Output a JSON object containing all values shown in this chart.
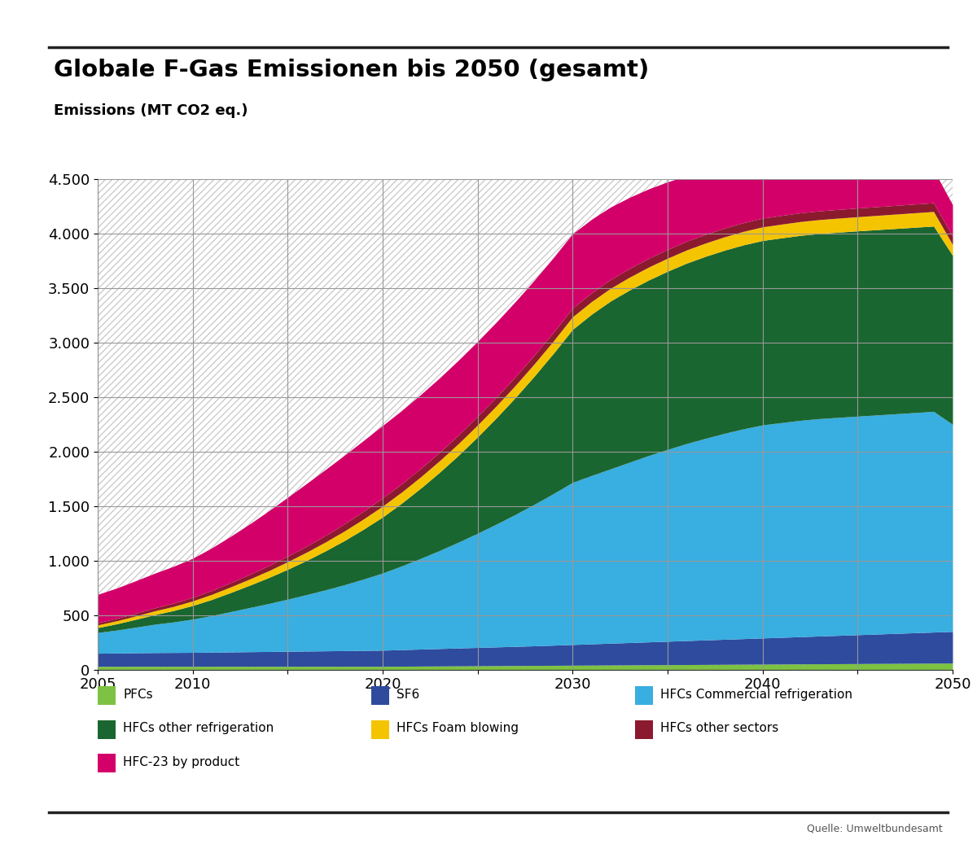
{
  "title": "Globale F-Gas Emissionen bis 2050 (gesamt)",
  "ylabel": "Emissions (MT CO2 eq.)",
  "source": "Quelle: Umweltbundesamt",
  "years": [
    2005,
    2006,
    2007,
    2008,
    2009,
    2010,
    2011,
    2012,
    2013,
    2014,
    2015,
    2016,
    2017,
    2018,
    2019,
    2020,
    2021,
    2022,
    2023,
    2024,
    2025,
    2026,
    2027,
    2028,
    2029,
    2030,
    2031,
    2032,
    2033,
    2034,
    2035,
    2036,
    2037,
    2038,
    2039,
    2040,
    2041,
    2042,
    2043,
    2044,
    2045,
    2046,
    2047,
    2048,
    2049,
    2050
  ],
  "series": {
    "PFCs": {
      "color": "#7dc242",
      "values": [
        30,
        30,
        30,
        30,
        30,
        30,
        30,
        30,
        30,
        30,
        30,
        30,
        30,
        30,
        30,
        30,
        31,
        32,
        33,
        34,
        35,
        36,
        37,
        38,
        39,
        40,
        41,
        42,
        43,
        44,
        45,
        46,
        47,
        48,
        49,
        50,
        51,
        52,
        53,
        54,
        55,
        56,
        57,
        58,
        59,
        60
      ]
    },
    "SF6": {
      "color": "#2e4b9e",
      "values": [
        120,
        122,
        124,
        126,
        127,
        128,
        130,
        132,
        134,
        136,
        138,
        140,
        142,
        144,
        146,
        148,
        152,
        156,
        160,
        164,
        168,
        172,
        176,
        180,
        185,
        190,
        195,
        200,
        205,
        210,
        215,
        220,
        225,
        230,
        235,
        240,
        245,
        250,
        255,
        260,
        265,
        270,
        275,
        280,
        285,
        290
      ]
    },
    "HFCs Commercial refrigeration": {
      "color": "#39aee0",
      "values": [
        190,
        210,
        235,
        260,
        280,
        305,
        335,
        370,
        405,
        440,
        478,
        518,
        560,
        605,
        655,
        708,
        768,
        832,
        900,
        972,
        1048,
        1128,
        1212,
        1300,
        1392,
        1488,
        1545,
        1600,
        1655,
        1710,
        1760,
        1808,
        1850,
        1890,
        1925,
        1955,
        1970,
        1985,
        1995,
        2000,
        2005,
        2010,
        2015,
        2020,
        2025,
        1900
      ]
    },
    "HFCs other refrigeration": {
      "color": "#1a6630",
      "values": [
        45,
        58,
        72,
        88,
        105,
        125,
        148,
        175,
        205,
        238,
        274,
        314,
        358,
        406,
        458,
        514,
        576,
        644,
        718,
        798,
        884,
        976,
        1074,
        1178,
        1288,
        1404,
        1480,
        1540,
        1580,
        1610,
        1635,
        1655,
        1670,
        1680,
        1688,
        1692,
        1695,
        1697,
        1698,
        1699,
        1700,
        1700,
        1700,
        1700,
        1700,
        1550
      ]
    },
    "HFCs Foam blowing": {
      "color": "#f5c400",
      "values": [
        25,
        28,
        31,
        35,
        38,
        42,
        47,
        52,
        57,
        63,
        70,
        76,
        82,
        88,
        94,
        100,
        102,
        104,
        106,
        108,
        110,
        111,
        112,
        113,
        114,
        115,
        116,
        117,
        118,
        119,
        120,
        121,
        122,
        123,
        124,
        125,
        126,
        127,
        128,
        129,
        130,
        131,
        132,
        133,
        134,
        100
      ]
    },
    "HFCs other sectors": {
      "color": "#8b1a2e",
      "values": [
        20,
        22,
        25,
        27,
        30,
        33,
        36,
        39,
        43,
        47,
        51,
        55,
        60,
        65,
        70,
        75,
        76,
        77,
        78,
        79,
        80,
        80,
        80,
        80,
        80,
        80,
        80,
        80,
        80,
        80,
        80,
        80,
        80,
        80,
        80,
        80,
        80,
        80,
        80,
        80,
        80,
        80,
        80,
        80,
        80,
        75
      ]
    },
    "HFC-23 by product": {
      "color": "#d4006a",
      "values": [
        260,
        278,
        298,
        318,
        338,
        358,
        390,
        425,
        462,
        502,
        540,
        575,
        605,
        630,
        650,
        665,
        672,
        678,
        682,
        685,
        687,
        688,
        688,
        687,
        685,
        682,
        675,
        665,
        652,
        637,
        620,
        600,
        578,
        554,
        528,
        500,
        472,
        444,
        418,
        394,
        372,
        352,
        334,
        318,
        304,
        290
      ]
    }
  },
  "ylim": [
    0,
    4500
  ],
  "yticks": [
    0,
    500,
    1000,
    1500,
    2000,
    2500,
    3000,
    3500,
    4000,
    4500
  ],
  "ytick_labels": [
    "0",
    "500",
    "1.000",
    "1.500",
    "2.000",
    "2.500",
    "3.000",
    "3.500",
    "4.000",
    "4.500"
  ],
  "xlim": [
    2005,
    2050
  ],
  "xticks": [
    2005,
    2010,
    2015,
    2020,
    2025,
    2030,
    2035,
    2040,
    2045,
    2050
  ],
  "xtick_labels": [
    "2005",
    "2010",
    "",
    "2020",
    "",
    "2030",
    "",
    "2040",
    "",
    "2050"
  ],
  "background_color": "#ffffff",
  "grid_color": "#999999"
}
